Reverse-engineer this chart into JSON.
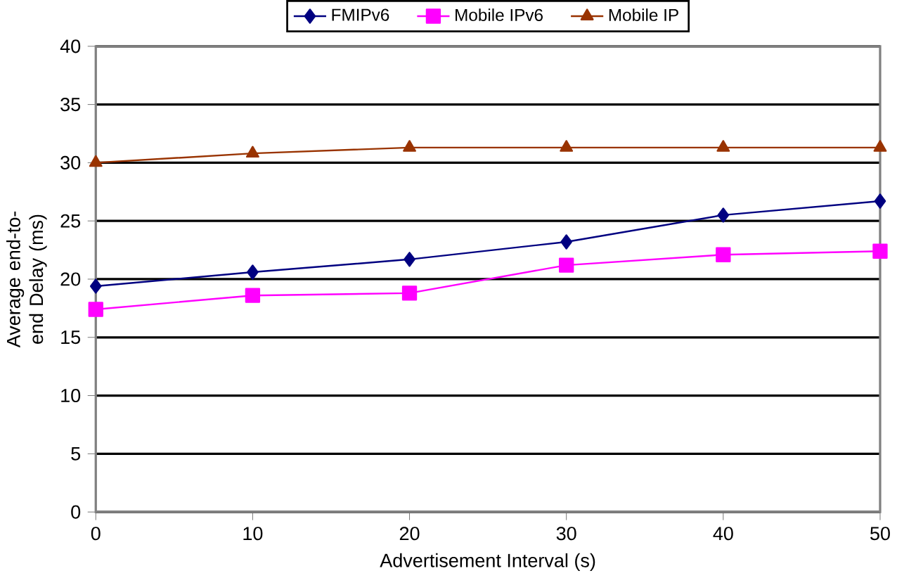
{
  "chart_data": {
    "type": "line",
    "xlabel": "Advertisement Interval (s)",
    "ylabel": "Average end-to-end Delay (ms)",
    "x": [
      0,
      10,
      20,
      30,
      40,
      50
    ],
    "series": [
      {
        "name": "FMIPv6",
        "color": "#000080",
        "marker": "diamond",
        "values": [
          19.4,
          20.6,
          21.7,
          23.2,
          25.5,
          26.7
        ]
      },
      {
        "name": "Mobile IPv6",
        "color": "#ff00ff",
        "marker": "square",
        "values": [
          17.4,
          18.6,
          18.8,
          21.2,
          22.1,
          22.4
        ]
      },
      {
        "name": "Mobile IP",
        "color": "#993300",
        "marker": "triangle",
        "values": [
          30,
          30.8,
          31.3,
          31.3,
          31.3,
          31.3
        ]
      }
    ],
    "xlim": [
      0,
      50
    ],
    "xticks": [
      0,
      10,
      20,
      30,
      40,
      50
    ],
    "ylim": [
      0,
      40
    ],
    "yticks": [
      0,
      5,
      10,
      15,
      20,
      25,
      30,
      35,
      40
    ],
    "grid": "y",
    "legend": "top",
    "line_style": "solid"
  }
}
